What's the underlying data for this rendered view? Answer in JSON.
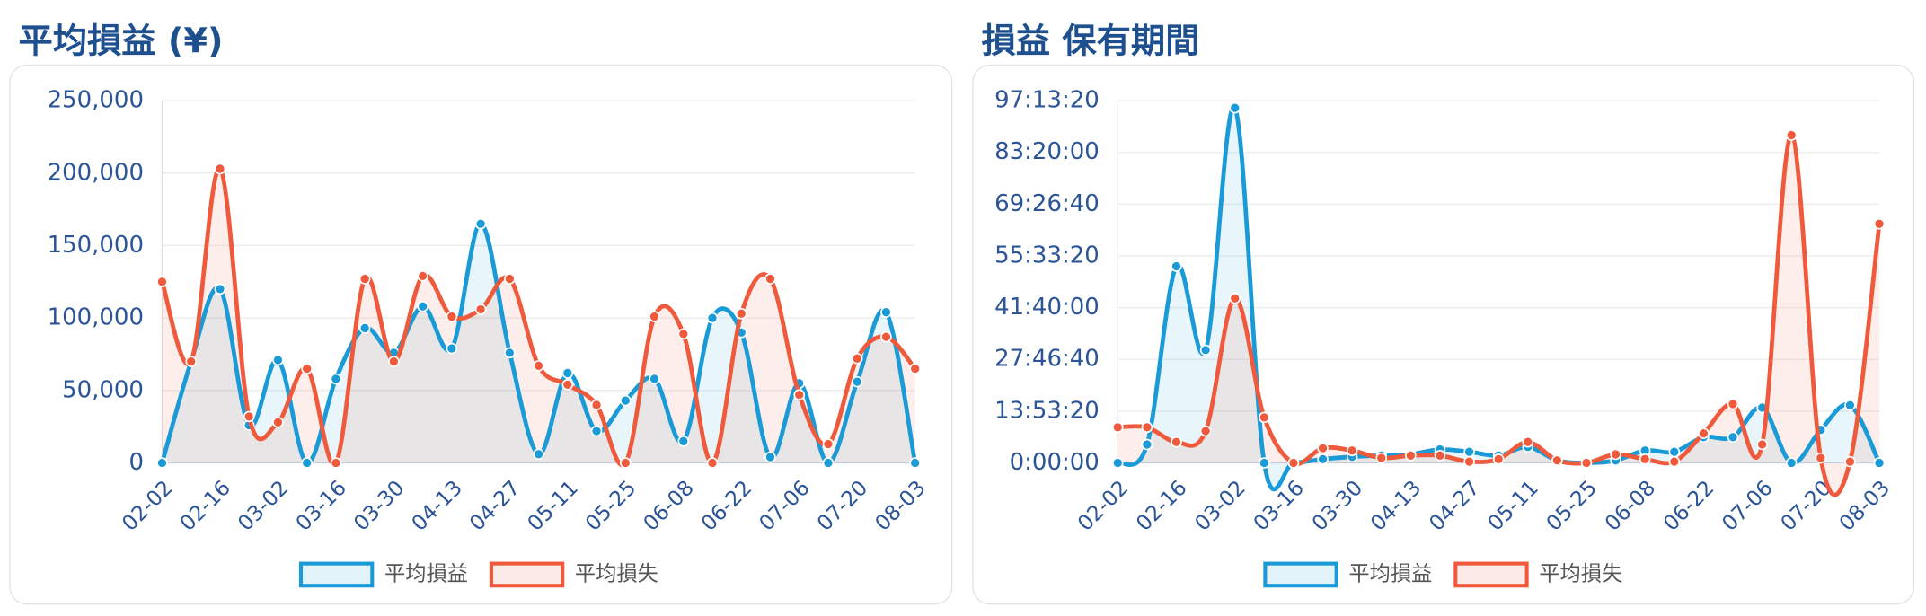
{
  "chart_data": [
    {
      "type": "line",
      "title": "平均損益 (¥)",
      "categories": [
        "02-02",
        null,
        "02-16",
        null,
        "03-02",
        null,
        "03-16",
        null,
        "03-30",
        null,
        "04-13",
        null,
        "04-27",
        null,
        "05-11",
        null,
        "05-25",
        null,
        "06-08",
        null,
        "06-22",
        null,
        "07-06",
        null,
        "07-20",
        null,
        "08-03"
      ],
      "series": [
        {
          "name": "平均損益",
          "color": "#1a9bd7",
          "values": [
            0,
            70000,
            120000,
            26000,
            71000,
            0,
            58000,
            93000,
            76000,
            108000,
            79000,
            165000,
            76000,
            6000,
            62000,
            22000,
            43000,
            58000,
            15000,
            100000,
            90000,
            4000,
            55000,
            0,
            56000,
            104000,
            0
          ]
        },
        {
          "name": "平均損失",
          "color": "#ef5a3c",
          "values": [
            125000,
            70000,
            203000,
            32000,
            28000,
            65000,
            0,
            127000,
            70000,
            129000,
            101000,
            106000,
            127000,
            67000,
            54000,
            40000,
            0,
            101000,
            89000,
            0,
            103000,
            127000,
            47000,
            13000,
            72000,
            87000,
            65000
          ]
        }
      ],
      "ylim": [
        0,
        250000
      ],
      "yticks": [
        {
          "value": 0,
          "label": "0"
        },
        {
          "value": 50000,
          "label": "50,000"
        },
        {
          "value": 100000,
          "label": "100,000"
        },
        {
          "value": 150000,
          "label": "150,000"
        },
        {
          "value": 200000,
          "label": "200,000"
        },
        {
          "value": 250000,
          "label": "250,000"
        }
      ],
      "grid": true,
      "legend": "bottom"
    },
    {
      "type": "line",
      "title": "損益 保有期間",
      "categories": [
        "02-02",
        null,
        "02-16",
        null,
        "03-02",
        null,
        "03-16",
        null,
        "03-30",
        null,
        "04-13",
        null,
        "04-27",
        null,
        "05-11",
        null,
        "05-25",
        null,
        "06-08",
        null,
        "06-22",
        null,
        "07-06",
        null,
        "07-20",
        null,
        "08-03"
      ],
      "series": [
        {
          "name": "平均損益",
          "color": "#1a9bd7",
          "values": [
            0,
            17800,
            190000,
            109000,
            343000,
            0,
            0,
            3600,
            5900,
            7100,
            8300,
            13000,
            10700,
            7100,
            15400,
            2400,
            0,
            2400,
            11900,
            10700,
            24900,
            24900,
            53400,
            0,
            32000,
            55700,
            0
          ]
        },
        {
          "name": "平均損失",
          "color": "#ef5a3c",
          "values": [
            34400,
            34400,
            20200,
            30800,
            159000,
            43900,
            0,
            14200,
            11900,
            4700,
            7100,
            7100,
            1200,
            3600,
            20200,
            2400,
            0,
            8300,
            3600,
            1200,
            28500,
            56900,
            17800,
            316700,
            4700,
            1200,
            231000
          ]
        }
      ],
      "ylim": [
        0,
        350000
      ],
      "yticks": [
        {
          "value": 0,
          "label": "0:00:00"
        },
        {
          "value": 50000,
          "label": "13:53:20"
        },
        {
          "value": 100000,
          "label": "27:46:40"
        },
        {
          "value": 150000,
          "label": "41:40:00"
        },
        {
          "value": 200000,
          "label": "55:33:20"
        },
        {
          "value": 250000,
          "label": "69:26:40"
        },
        {
          "value": 300000,
          "label": "83:20:00"
        },
        {
          "value": 350000,
          "label": "97:13:20"
        }
      ],
      "grid": true,
      "legend": "bottom"
    }
  ]
}
